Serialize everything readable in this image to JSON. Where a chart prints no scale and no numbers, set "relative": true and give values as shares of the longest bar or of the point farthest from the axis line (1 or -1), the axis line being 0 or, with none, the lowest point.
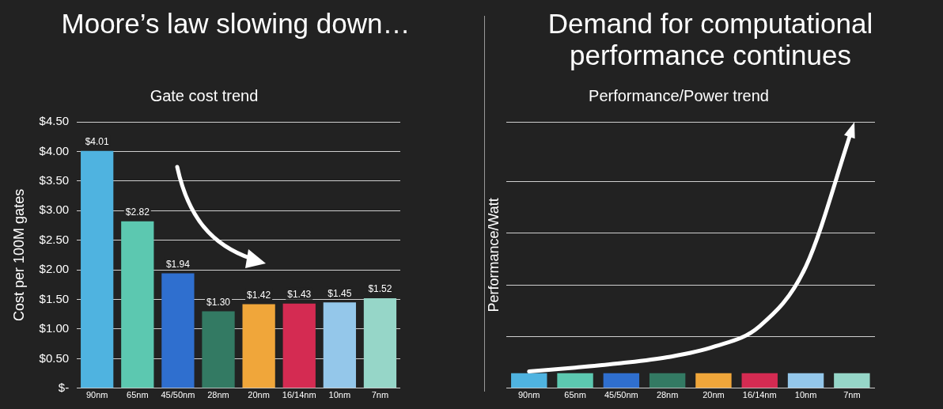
{
  "chart_data": [
    {
      "type": "bar",
      "title": "Moore’s law slowing down…",
      "subtitle": "Gate cost trend",
      "ylabel": "Cost per 100M gates",
      "categories": [
        "90nm",
        "65nm",
        "45/50nm",
        "28nm",
        "20nm",
        "16/14nm",
        "10nm",
        "7nm"
      ],
      "values": [
        4.01,
        2.82,
        1.94,
        1.3,
        1.42,
        1.43,
        1.45,
        1.52
      ],
      "colors": [
        "#4fb3e0",
        "#5cc8b0",
        "#2f6fcf",
        "#337a63",
        "#f0a63a",
        "#d42b52",
        "#94c7ea",
        "#96d6c8"
      ],
      "value_labels": [
        "$4.01",
        "$2.82",
        "$1.94",
        "$1.30",
        "$1.42",
        "$1.43",
        "$1.45",
        "$1.52"
      ],
      "ylim": [
        0,
        4.5
      ],
      "yticks": [
        {
          "value": 0,
          "label": "$-"
        },
        {
          "value": 0.5,
          "label": "$0.50"
        },
        {
          "value": 1,
          "label": "$1.00"
        },
        {
          "value": 1.5,
          "label": "$1.50"
        },
        {
          "value": 2,
          "label": "$2.00"
        },
        {
          "value": 2.5,
          "label": "$2.50"
        },
        {
          "value": 3,
          "label": "$3.00"
        },
        {
          "value": 3.5,
          "label": "$3.50"
        },
        {
          "value": 4,
          "label": "$4.00"
        },
        {
          "value": 4.5,
          "label": "$4.50"
        }
      ],
      "grid": "y"
    },
    {
      "type": "bar",
      "title": "Demand for computational performance continues",
      "subtitle": "Performance/Power trend",
      "ylabel": "Performance/Watt",
      "relative": true,
      "categories": [
        "90nm",
        "65nm",
        "45/50nm",
        "28nm",
        "20nm",
        "16/14nm",
        "10nm",
        "7nm"
      ],
      "series": [
        {
          "colors": [
            "#4fb3e0",
            "#5cc8b0",
            "#2f6fcf",
            "#337a63",
            "#f0a63a",
            "#d42b52",
            "#94c7ea",
            "#96d6c8"
          ],
          "values": [
            0.058,
            0.058,
            0.058,
            0.058,
            0.058,
            0.058,
            0.058,
            0.058
          ]
        },
        {
          "type": "line",
          "color": "#ffffff",
          "values": [
            0.065,
            0.08,
            0.097,
            0.12,
            0.16,
            0.24,
            0.47,
            1
          ]
        }
      ],
      "grid": "y"
    }
  ]
}
